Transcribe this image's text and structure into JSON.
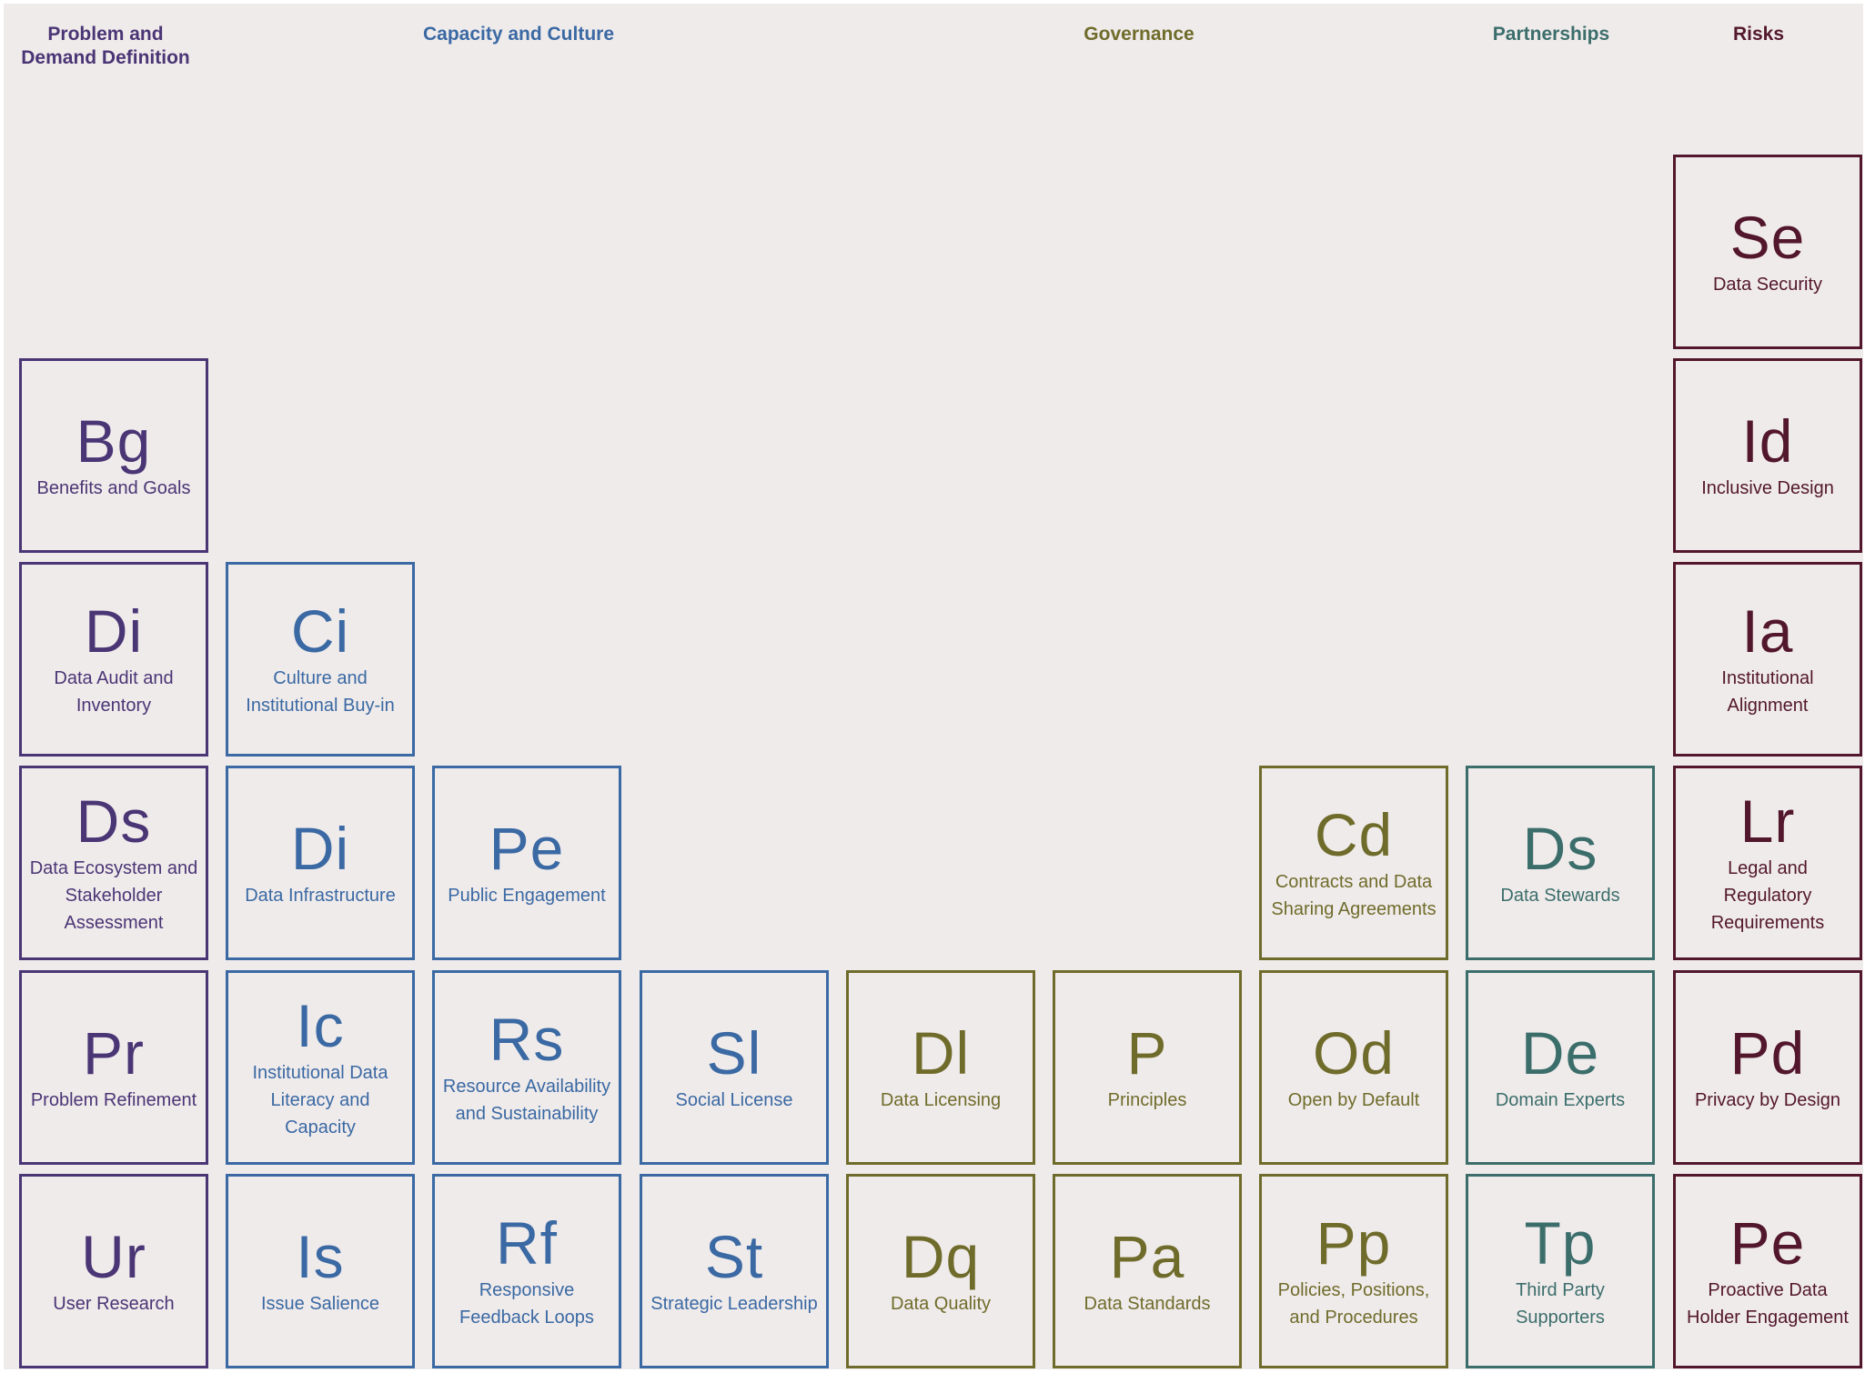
{
  "categories": [
    {
      "id": "problem",
      "title": "Problem and\nDemand Definition",
      "color": "#4a3575"
    },
    {
      "id": "capacity",
      "title": "Capacity and Culture",
      "color": "#3a69a3"
    },
    {
      "id": "governance",
      "title": "Governance",
      "color": "#6f6c2b"
    },
    {
      "id": "partnerships",
      "title": "Partnerships",
      "color": "#3b6e6b"
    },
    {
      "id": "risks",
      "title": "Risks",
      "color": "#52172c"
    }
  ],
  "elements": [
    {
      "symbol": "Bg",
      "name": "Benefits and Goals",
      "category": "problem",
      "col": 0,
      "row": 1
    },
    {
      "symbol": "Di",
      "name": "Data Audit and Inventory",
      "category": "problem",
      "col": 0,
      "row": 2
    },
    {
      "symbol": "Ds",
      "name": "Data Ecosystem and Stakeholder Assessment",
      "category": "problem",
      "col": 0,
      "row": 3
    },
    {
      "symbol": "Pr",
      "name": "Problem Refinement",
      "category": "problem",
      "col": 0,
      "row": 4
    },
    {
      "symbol": "Ur",
      "name": "User Research",
      "category": "problem",
      "col": 0,
      "row": 5
    },
    {
      "symbol": "Ci",
      "name": "Culture and Institutional Buy-in",
      "category": "capacity",
      "col": 1,
      "row": 2
    },
    {
      "symbol": "Di",
      "name": "Data Infrastructure",
      "category": "capacity",
      "col": 1,
      "row": 3
    },
    {
      "symbol": "Ic",
      "name": "Institutional Data Literacy and Capacity",
      "category": "capacity",
      "col": 1,
      "row": 4
    },
    {
      "symbol": "Is",
      "name": "Issue Salience",
      "category": "capacity",
      "col": 1,
      "row": 5
    },
    {
      "symbol": "Pe",
      "name": "Public Engagement",
      "category": "capacity",
      "col": 2,
      "row": 3
    },
    {
      "symbol": "Rs",
      "name": "Resource Availability and Sustainability",
      "category": "capacity",
      "col": 2,
      "row": 4
    },
    {
      "symbol": "Rf",
      "name": "Responsive Feedback Loops",
      "category": "capacity",
      "col": 2,
      "row": 5
    },
    {
      "symbol": "Sl",
      "name": "Social License",
      "category": "capacity",
      "col": 3,
      "row": 4
    },
    {
      "symbol": "St",
      "name": "Strategic Leadership",
      "category": "capacity",
      "col": 3,
      "row": 5
    },
    {
      "symbol": "Dl",
      "name": "Data Licensing",
      "category": "governance",
      "col": 4,
      "row": 4
    },
    {
      "symbol": "Dq",
      "name": "Data Quality",
      "category": "governance",
      "col": 4,
      "row": 5
    },
    {
      "symbol": "P",
      "name": "Principles",
      "category": "governance",
      "col": 5,
      "row": 4
    },
    {
      "symbol": "Pa",
      "name": "Data Standards",
      "category": "governance",
      "col": 5,
      "row": 5
    },
    {
      "symbol": "Cd",
      "name": "Contracts and Data Sharing Agreements",
      "category": "governance",
      "col": 6,
      "row": 3
    },
    {
      "symbol": "Od",
      "name": "Open by Default",
      "category": "governance",
      "col": 6,
      "row": 4
    },
    {
      "symbol": "Pp",
      "name": "Policies, Positions, and Procedures",
      "category": "governance",
      "col": 6,
      "row": 5
    },
    {
      "symbol": "Ds",
      "name": "Data Stewards",
      "category": "partnerships",
      "col": 7,
      "row": 3
    },
    {
      "symbol": "De",
      "name": "Domain Experts",
      "category": "partnerships",
      "col": 7,
      "row": 4
    },
    {
      "symbol": "Tp",
      "name": "Third Party Supporters",
      "category": "partnerships",
      "col": 7,
      "row": 5
    },
    {
      "symbol": "Se",
      "name": "Data Security",
      "category": "risks",
      "col": 8,
      "row": 0
    },
    {
      "symbol": "Id",
      "name": "Inclusive Design",
      "category": "risks",
      "col": 8,
      "row": 1
    },
    {
      "symbol": "Ia",
      "name": "Institutional Alignment",
      "category": "risks",
      "col": 8,
      "row": 2
    },
    {
      "symbol": "Lr",
      "name": "Legal and Regulatory Requirements",
      "category": "risks",
      "col": 8,
      "row": 3
    },
    {
      "symbol": "Pd",
      "name": "Privacy by Design",
      "category": "risks",
      "col": 8,
      "row": 4
    },
    {
      "symbol": "Pe",
      "name": "Proactive Data Holder Engagement",
      "category": "risks",
      "col": 8,
      "row": 5
    }
  ]
}
